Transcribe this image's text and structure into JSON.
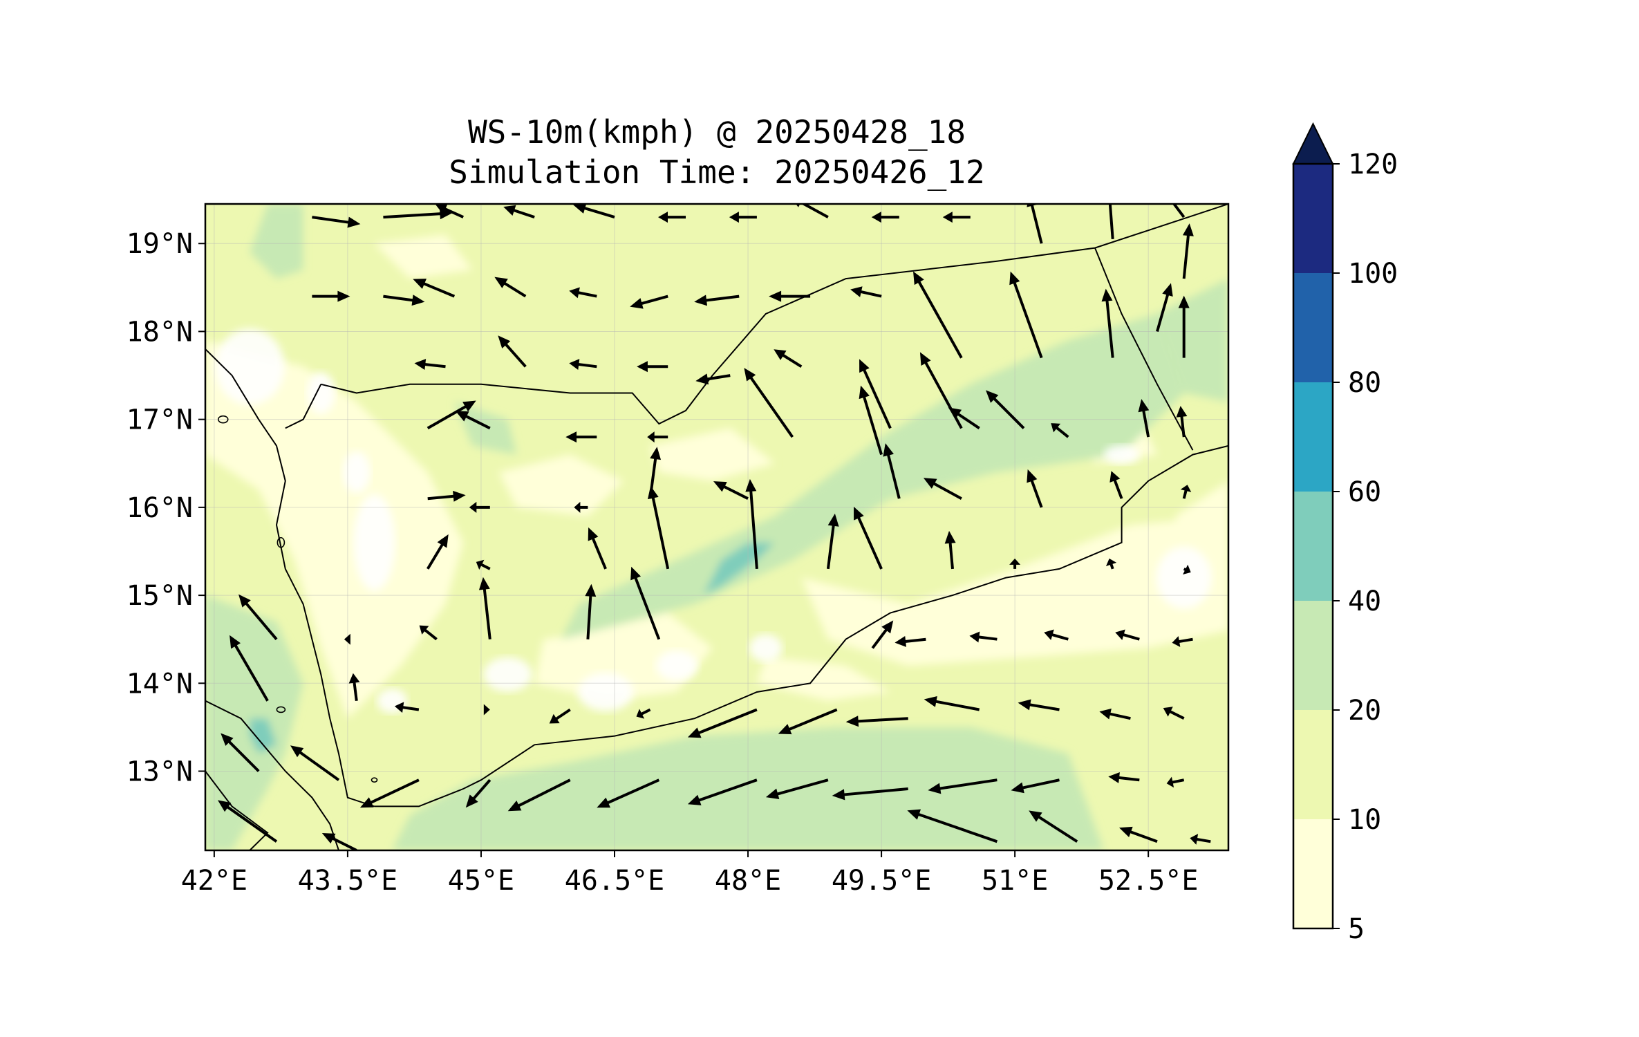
{
  "figure": {
    "title_line1": "WS-10m(kmph) @ 20250428_18",
    "title_line2": "Simulation Time: 20250426_12"
  },
  "map": {
    "projection": "PlateCarree",
    "lon_range": [
      41.9,
      53.4
    ],
    "lat_range": [
      12.1,
      19.45
    ],
    "lon_ticks": [
      {
        "value": 42.0,
        "label": "42°E"
      },
      {
        "value": 43.5,
        "label": "43.5°E"
      },
      {
        "value": 45.0,
        "label": "45°E"
      },
      {
        "value": 46.5,
        "label": "46.5°E"
      },
      {
        "value": 48.0,
        "label": "48°E"
      },
      {
        "value": 49.5,
        "label": "49.5°E"
      },
      {
        "value": 51.0,
        "label": "51°E"
      },
      {
        "value": 52.5,
        "label": "52.5°E"
      }
    ],
    "lat_ticks": [
      {
        "value": 19,
        "label": "19°N"
      },
      {
        "value": 18,
        "label": "18°N"
      },
      {
        "value": 17,
        "label": "17°N"
      },
      {
        "value": 16,
        "label": "16°N"
      },
      {
        "value": 15,
        "label": "15°N"
      },
      {
        "value": 14,
        "label": "14°N"
      },
      {
        "value": 13,
        "label": "13°N"
      }
    ],
    "gridlines": true,
    "field": "10 m wind speed (filled contours) with wind vectors",
    "colors": {
      "below5": "#ffffff",
      "5-10": "#ffffd9",
      "10-20": "#edf8b1",
      "20-40": "#c7e9b4",
      "40-60": "#7fcdbb",
      "coast": "#000000",
      "arrow": "#000000"
    },
    "contour_regions": [
      {
        "level": "20-40",
        "area": "southeast Gulf of Aden and Arabian Sea approach, 47–51.5°E, 12.1–13.9°N",
        "lons": [
          47.4,
          49.0,
          50.5,
          51.6,
          52.0,
          51.0,
          49.0,
          47.0,
          45.0,
          44.2,
          44.8,
          46.0
        ],
        "lats": [
          13.4,
          13.5,
          13.5,
          13.2,
          12.1,
          12.1,
          12.1,
          12.1,
          12.1,
          12.5,
          12.9,
          13.1
        ]
      },
      {
        "level": "20-40",
        "area": "interior Yemen / Hadramawt diagonal band, 46–52.5°E, 14.6–18.3°N",
        "lons": [
          46.1,
          47.2,
          48.3,
          49.5,
          50.5,
          51.6,
          52.6,
          52.9,
          52.2,
          50.8,
          49.6,
          48.5,
          47.4,
          46.3,
          45.9
        ],
        "lats": [
          14.9,
          15.4,
          15.9,
          16.8,
          17.4,
          17.9,
          18.2,
          17.3,
          16.6,
          16.4,
          16.1,
          15.4,
          14.9,
          14.6,
          14.5
        ]
      },
      {
        "level": "20-40",
        "area": "southern Red Sea, 41.9–43.0°E, 12.1–15.0°N",
        "lons": [
          41.9,
          42.7,
          43.0,
          42.8,
          42.6,
          42.2,
          41.9
        ],
        "lats": [
          15.0,
          14.7,
          14.0,
          13.2,
          12.8,
          12.1,
          12.1
        ]
      },
      {
        "level": "40-60",
        "area": "small patch near 47.4–48.3°E, 15.0–15.7°N",
        "lons": [
          47.5,
          47.9,
          48.3,
          48.1,
          47.7,
          47.5
        ],
        "lats": [
          15.0,
          15.5,
          15.6,
          15.4,
          15.1,
          15.0
        ]
      },
      {
        "level": "40-60",
        "area": "small patch near 42.5°E, 13.3–13.6°N",
        "lons": [
          42.4,
          42.6,
          42.7,
          42.5,
          42.4
        ],
        "lats": [
          13.6,
          13.6,
          13.3,
          13.2,
          13.4
        ]
      }
    ]
  },
  "colorbar": {
    "ticks": [
      {
        "value": 5,
        "label": "5"
      },
      {
        "value": 10,
        "label": "10"
      },
      {
        "value": 20,
        "label": "20"
      },
      {
        "value": 40,
        "label": "40"
      },
      {
        "value": 60,
        "label": "60"
      },
      {
        "value": 80,
        "label": "80"
      },
      {
        "value": 100,
        "label": "100"
      },
      {
        "value": 120,
        "label": "120"
      }
    ],
    "segments": [
      {
        "from": 5,
        "to": 10,
        "color": "#ffffd9"
      },
      {
        "from": 10,
        "to": 20,
        "color": "#edf8b1"
      },
      {
        "from": 20,
        "to": 40,
        "color": "#c7e9b4"
      },
      {
        "from": 40,
        "to": 60,
        "color": "#7fcdbb"
      },
      {
        "from": 60,
        "to": 80,
        "color": "#2ca6c5"
      },
      {
        "from": 80,
        "to": 100,
        "color": "#2162aa"
      },
      {
        "from": 100,
        "to": 120,
        "color": "#1c2a80"
      }
    ],
    "extend_color": "#0c1d4f",
    "extend": "max"
  }
}
